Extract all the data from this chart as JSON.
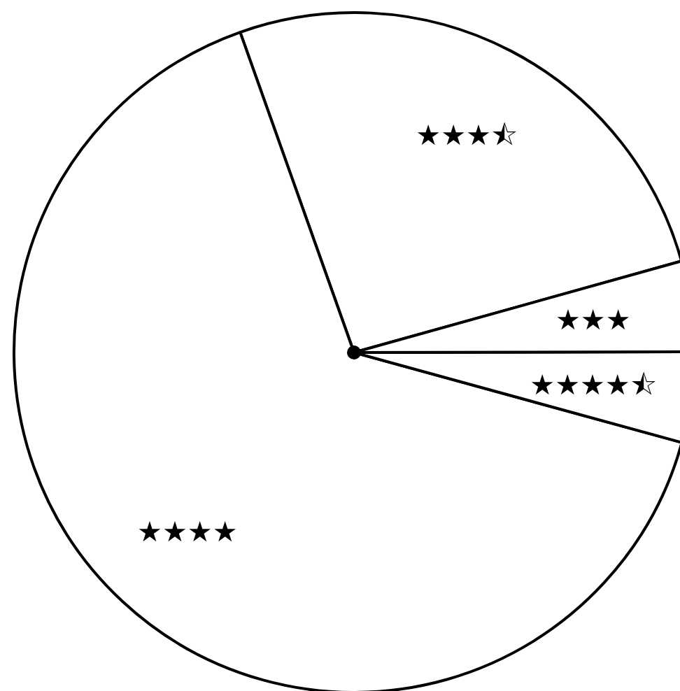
{
  "chart_data": {
    "type": "pie",
    "categories": [
      "★★★⯪",
      "★★★★",
      "★★★★⯪",
      "★★★"
    ],
    "values": [
      26.1,
      65.3,
      4.3,
      4.3
    ],
    "colors": [
      "#ffffff",
      "#ffffff",
      "#ffffff",
      "#ffffff"
    ]
  }
}
